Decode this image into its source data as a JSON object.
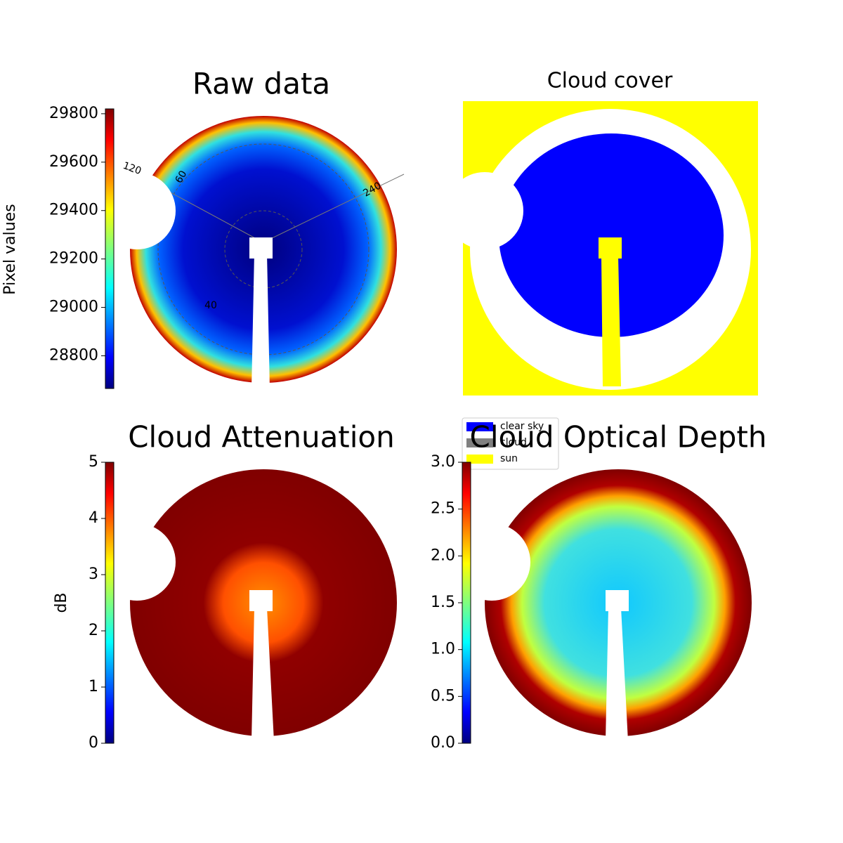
{
  "chart_data": [
    {
      "type": "image",
      "title": "Raw data",
      "colorbar_label": "Pixel values",
      "clim": [
        28665,
        29820
      ],
      "cticks": [
        28800,
        29000,
        29200,
        29400,
        29600,
        29800
      ],
      "colormap": "jet",
      "annotations": [
        "120",
        "60",
        "240",
        "40"
      ]
    },
    {
      "type": "image",
      "title": "Cloud cover",
      "legend": [
        {
          "name": "clear sky",
          "color": "#0000ff"
        },
        {
          "name": "cloud",
          "color": "#808080"
        },
        {
          "name": "sun",
          "color": "#ffff00"
        }
      ]
    },
    {
      "type": "image",
      "title": "Cloud Attenuation",
      "colorbar_label": "dB",
      "clim": [
        0,
        5
      ],
      "cticks": [
        0,
        1,
        2,
        3,
        4,
        5
      ],
      "colormap": "jet"
    },
    {
      "type": "image",
      "title": "Cloud Optical Depth",
      "clim": [
        0,
        3
      ],
      "cticks": [
        {
          "value": 0,
          "label": "0.0"
        },
        {
          "value": 0.5,
          "label": "0.5"
        },
        {
          "value": 1,
          "label": "1.0"
        },
        {
          "value": 1.5,
          "label": "1.5"
        },
        {
          "value": 2,
          "label": "2.0"
        },
        {
          "value": 2.5,
          "label": "2.5"
        },
        {
          "value": 3,
          "label": "3.0"
        }
      ],
      "colormap": "jet"
    }
  ]
}
